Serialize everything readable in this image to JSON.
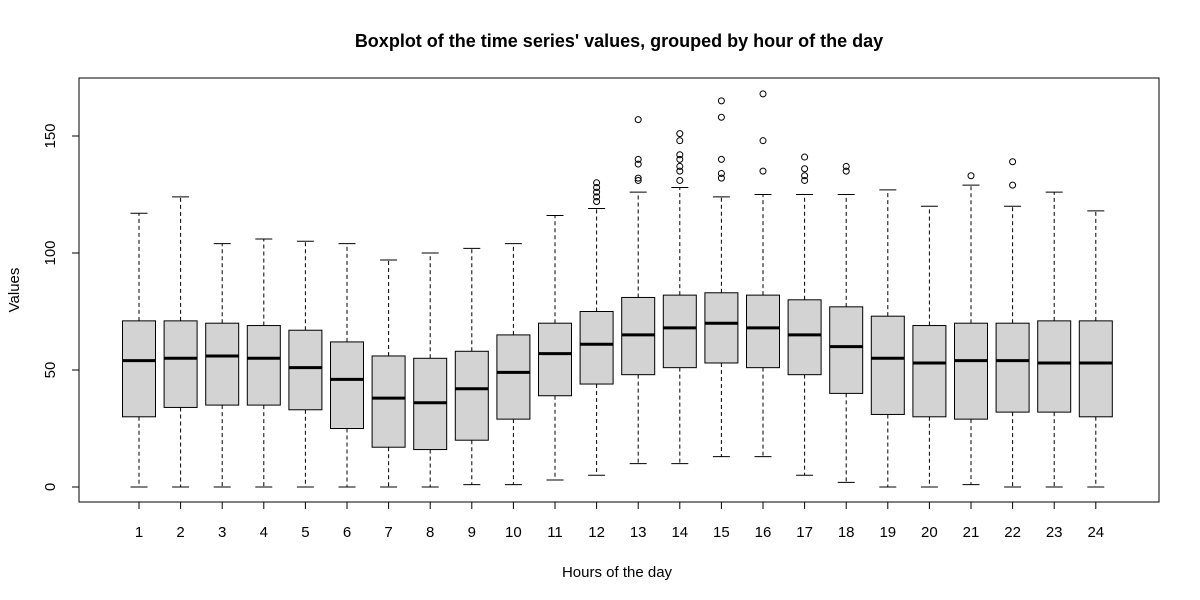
{
  "chart_data": {
    "type": "boxplot",
    "title": "Boxplot of the time series' values, grouped by hour of the day",
    "xlabel": "Hours of the day",
    "ylabel": "Values",
    "ylim": [
      -7,
      175
    ],
    "yticks": [
      0,
      50,
      100,
      150
    ],
    "grid": false,
    "legend": "none",
    "colors": {
      "box_fill": "#d3d3d3",
      "stroke": "#000000",
      "background": "#ffffff"
    },
    "categories": [
      "1",
      "2",
      "3",
      "4",
      "5",
      "6",
      "7",
      "8",
      "9",
      "10",
      "11",
      "12",
      "13",
      "14",
      "15",
      "16",
      "17",
      "18",
      "19",
      "20",
      "21",
      "22",
      "23",
      "24"
    ],
    "boxes": [
      {
        "min": 0,
        "q1": 30,
        "median": 54,
        "q3": 71,
        "max": 117,
        "outliers": []
      },
      {
        "min": 0,
        "q1": 34,
        "median": 55,
        "q3": 71,
        "max": 124,
        "outliers": []
      },
      {
        "min": 0,
        "q1": 35,
        "median": 56,
        "q3": 70,
        "max": 104,
        "outliers": []
      },
      {
        "min": 0,
        "q1": 35,
        "median": 55,
        "q3": 69,
        "max": 106,
        "outliers": []
      },
      {
        "min": 0,
        "q1": 33,
        "median": 51,
        "q3": 67,
        "max": 105,
        "outliers": []
      },
      {
        "min": 0,
        "q1": 25,
        "median": 46,
        "q3": 62,
        "max": 104,
        "outliers": []
      },
      {
        "min": 0,
        "q1": 17,
        "median": 38,
        "q3": 56,
        "max": 97,
        "outliers": []
      },
      {
        "min": 0,
        "q1": 16,
        "median": 36,
        "q3": 55,
        "max": 100,
        "outliers": []
      },
      {
        "min": 1,
        "q1": 20,
        "median": 42,
        "q3": 58,
        "max": 102,
        "outliers": []
      },
      {
        "min": 1,
        "q1": 29,
        "median": 49,
        "q3": 65,
        "max": 104,
        "outliers": []
      },
      {
        "min": 3,
        "q1": 39,
        "median": 57,
        "q3": 70,
        "max": 116,
        "outliers": []
      },
      {
        "min": 5,
        "q1": 44,
        "median": 61,
        "q3": 75,
        "max": 119,
        "outliers": [
          122,
          124,
          126,
          128,
          130
        ]
      },
      {
        "min": 10,
        "q1": 48,
        "median": 65,
        "q3": 81,
        "max": 126,
        "outliers": [
          131,
          132,
          138,
          140,
          157
        ]
      },
      {
        "min": 10,
        "q1": 51,
        "median": 68,
        "q3": 82,
        "max": 128,
        "outliers": [
          131,
          135,
          137,
          140,
          142,
          148,
          151
        ]
      },
      {
        "min": 13,
        "q1": 53,
        "median": 70,
        "q3": 83,
        "max": 124,
        "outliers": [
          132,
          134,
          140,
          158,
          165
        ]
      },
      {
        "min": 13,
        "q1": 51,
        "median": 68,
        "q3": 82,
        "max": 125,
        "outliers": [
          135,
          148,
          168
        ]
      },
      {
        "min": 5,
        "q1": 48,
        "median": 65,
        "q3": 80,
        "max": 125,
        "outliers": [
          131,
          133,
          136,
          141
        ]
      },
      {
        "min": 2,
        "q1": 40,
        "median": 60,
        "q3": 77,
        "max": 125,
        "outliers": [
          135,
          137
        ]
      },
      {
        "min": 0,
        "q1": 31,
        "median": 55,
        "q3": 73,
        "max": 127,
        "outliers": []
      },
      {
        "min": 0,
        "q1": 30,
        "median": 53,
        "q3": 69,
        "max": 120,
        "outliers": []
      },
      {
        "min": 1,
        "q1": 29,
        "median": 54,
        "q3": 70,
        "max": 129,
        "outliers": [
          133
        ]
      },
      {
        "min": 0,
        "q1": 32,
        "median": 54,
        "q3": 70,
        "max": 120,
        "outliers": [
          129,
          139
        ]
      },
      {
        "min": 0,
        "q1": 32,
        "median": 53,
        "q3": 71,
        "max": 126,
        "outliers": []
      },
      {
        "min": 0,
        "q1": 30,
        "median": 53,
        "q3": 71,
        "max": 118,
        "outliers": []
      }
    ]
  }
}
